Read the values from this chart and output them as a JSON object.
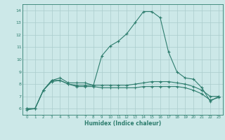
{
  "xlabel": "Humidex (Indice chaleur)",
  "x_values": [
    0,
    1,
    2,
    3,
    4,
    5,
    6,
    7,
    8,
    9,
    10,
    11,
    12,
    13,
    14,
    15,
    16,
    17,
    18,
    19,
    20,
    21,
    22,
    23
  ],
  "line1_y": [
    5.9,
    6.0,
    7.5,
    8.3,
    8.5,
    8.1,
    8.1,
    8.1,
    7.9,
    10.3,
    11.1,
    11.5,
    12.1,
    13.0,
    13.9,
    13.9,
    13.4,
    10.6,
    9.0,
    8.5,
    8.4,
    7.7,
    6.6,
    7.0
  ],
  "line2_y": [
    6.0,
    6.0,
    7.5,
    8.3,
    8.3,
    8.0,
    7.9,
    7.9,
    7.9,
    7.9,
    7.9,
    7.9,
    7.9,
    8.0,
    8.1,
    8.2,
    8.2,
    8.2,
    8.1,
    8.0,
    7.8,
    7.5,
    7.0,
    7.0
  ],
  "line3_y": [
    6.0,
    6.0,
    7.5,
    8.2,
    8.3,
    8.0,
    7.8,
    7.8,
    7.8,
    7.7,
    7.7,
    7.7,
    7.7,
    7.7,
    7.8,
    7.8,
    7.8,
    7.8,
    7.8,
    7.7,
    7.5,
    7.2,
    6.7,
    6.9
  ],
  "line_color": "#2e7d6e",
  "bg_color": "#cce8e8",
  "grid_color": "#aacccc",
  "ylim": [
    5.5,
    14.5
  ],
  "xlim": [
    -0.5,
    23.5
  ],
  "yticks": [
    6,
    7,
    8,
    9,
    10,
    11,
    12,
    13,
    14
  ],
  "xticks": [
    0,
    1,
    2,
    3,
    4,
    5,
    6,
    7,
    8,
    9,
    10,
    11,
    12,
    13,
    14,
    15,
    16,
    17,
    18,
    19,
    20,
    21,
    22,
    23
  ]
}
